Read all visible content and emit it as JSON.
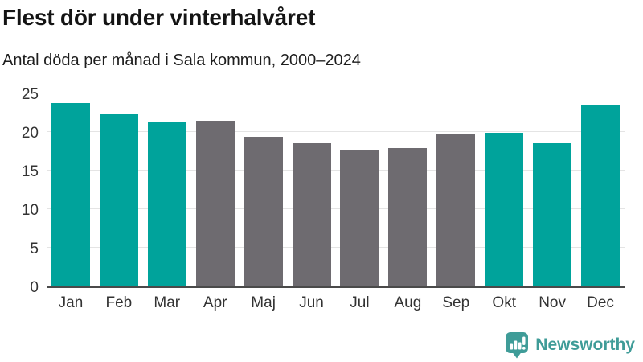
{
  "header": {
    "title": "Flest dör under vinterhalvåret",
    "subtitle": "Antal döda per månad i Sala kommun, 2000–2024"
  },
  "chart_data": {
    "type": "bar",
    "title": "Flest dör under vinterhalvåret",
    "subtitle": "Antal döda per månad i Sala kommun, 2000–2024",
    "categories": [
      "Jan",
      "Feb",
      "Mar",
      "Apr",
      "Maj",
      "Jun",
      "Jul",
      "Aug",
      "Sep",
      "Okt",
      "Nov",
      "Dec"
    ],
    "values": [
      23.7,
      22.3,
      21.2,
      21.4,
      19.4,
      18.5,
      17.6,
      17.9,
      19.8,
      19.9,
      18.5,
      23.5
    ],
    "bar_color_keys": [
      "teal",
      "teal",
      "teal",
      "gray",
      "gray",
      "gray",
      "gray",
      "gray",
      "gray",
      "teal",
      "teal",
      "teal"
    ],
    "xlabel": "",
    "ylabel": "",
    "ylim": [
      0,
      25
    ],
    "yticks": [
      0,
      5,
      10,
      15,
      20,
      25
    ],
    "grid": true,
    "legend": "none",
    "colors": {
      "teal": "#00a39b",
      "gray": "#6e6b70"
    }
  },
  "branding": {
    "logo_text": "Newsworthy",
    "logo_color": "#3f9c98",
    "logo_icon": "bar-chart-speech-bubble-icon"
  }
}
